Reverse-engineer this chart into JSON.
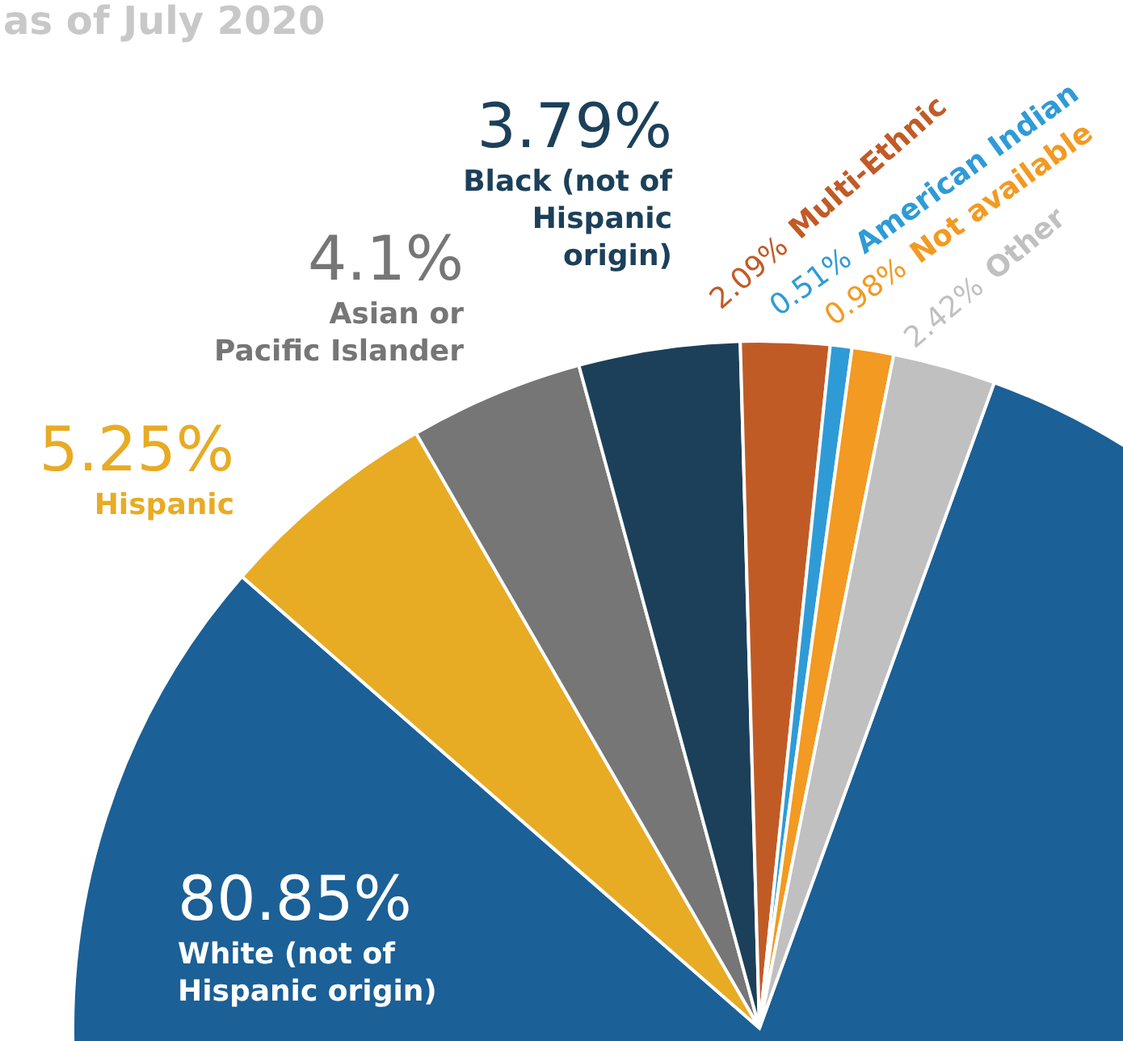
{
  "chart_data": {
    "type": "pie",
    "title": "as of July 2020",
    "categories": [
      "White (not of\nHispanic origin)",
      "Hispanic",
      "Asian or\nPacific Islander",
      "Black (not of\nHispanic\norigin)",
      "Multi-Ethnic",
      "American Indian",
      "Not available",
      "Other"
    ],
    "values": [
      80.85,
      5.25,
      4.1,
      3.79,
      2.09,
      0.51,
      0.98,
      2.42
    ],
    "colors": [
      "#1b6096",
      "#e8ab24",
      "#767676",
      "#1c405a",
      "#c15b26",
      "#2f9bd6",
      "#f29a22",
      "#c0c0c0"
    ],
    "value_labels": [
      "80.85%",
      "5.25%",
      "4.1%",
      "3.79%",
      "2.09%",
      "0.51%",
      "0.98%",
      "2.42%"
    ]
  }
}
